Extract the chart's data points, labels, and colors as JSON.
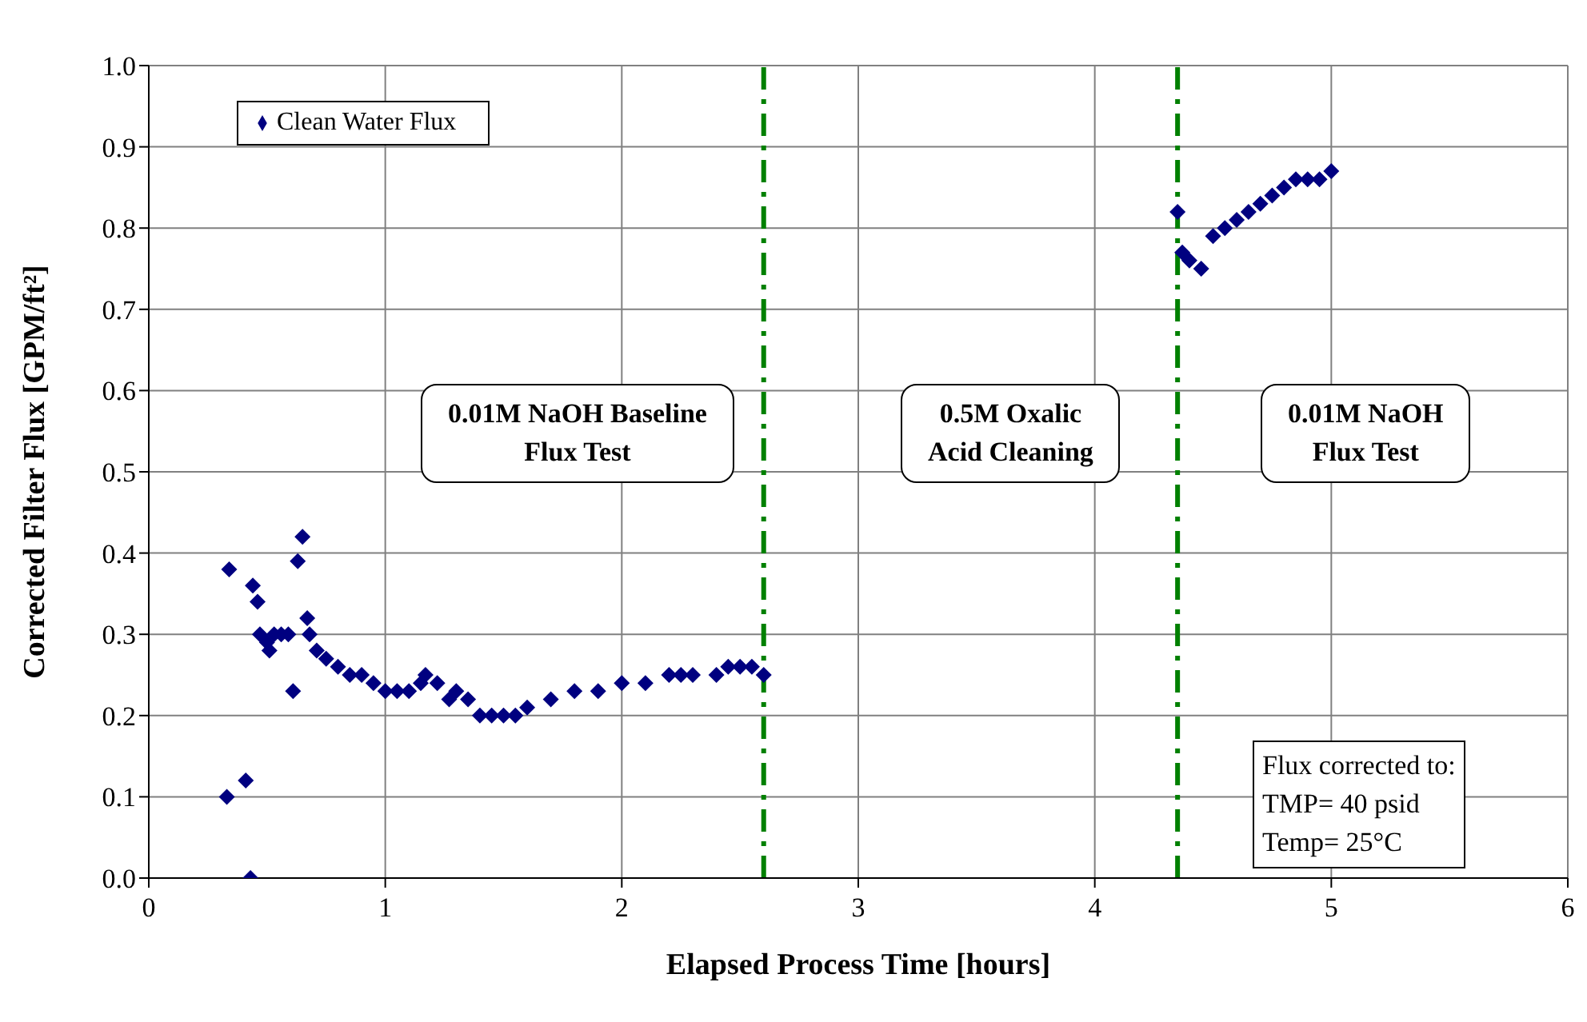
{
  "chart_data": {
    "type": "scatter",
    "xlabel": "Elapsed Process Time [hours]",
    "ylabel": "Corrected Filter Flux [GPM/ft²]",
    "xlim": [
      0,
      6
    ],
    "xticks": [
      0,
      1,
      2,
      3,
      4,
      5,
      6
    ],
    "ylim": [
      0,
      1
    ],
    "yticks": [
      {
        "value": 0,
        "label": "0.0"
      },
      {
        "value": 0.1,
        "label": "0.1"
      },
      {
        "value": 0.2,
        "label": "0.2"
      },
      {
        "value": 0.3,
        "label": "0.3"
      },
      {
        "value": 0.4,
        "label": "0.4"
      },
      {
        "value": 0.5,
        "label": "0.5"
      },
      {
        "value": 0.6,
        "label": "0.6"
      },
      {
        "value": 0.7,
        "label": "0.7"
      },
      {
        "value": 0.8,
        "label": "0.8"
      },
      {
        "value": 0.9,
        "label": "0.9"
      },
      {
        "value": 1,
        "label": "1.0"
      }
    ],
    "grid": true,
    "legend": "top left",
    "marker": "diamond",
    "series": [
      {
        "name": "Clean Water Flux",
        "color": "#000080",
        "x": [
          0.33,
          0.34,
          0.41,
          0.43,
          0.44,
          0.46,
          0.47,
          0.5,
          0.51,
          0.53,
          0.56,
          0.59,
          0.61,
          0.63,
          0.65,
          0.67,
          0.68,
          0.71,
          0.75,
          0.8,
          0.85,
          0.9,
          0.95,
          1.0,
          1.05,
          1.1,
          1.15,
          1.17,
          1.22,
          1.27,
          1.3,
          1.35,
          1.4,
          1.45,
          1.5,
          1.55,
          1.6,
          1.7,
          1.8,
          1.9,
          2.0,
          2.1,
          2.2,
          2.25,
          2.3,
          2.4,
          2.45,
          2.5,
          2.55,
          2.6,
          4.35,
          4.37,
          4.4,
          4.45,
          4.5,
          4.55,
          4.6,
          4.65,
          4.7,
          4.75,
          4.8,
          4.85,
          4.9,
          4.95,
          5.0
        ],
        "values": [
          0.1,
          0.38,
          0.12,
          0.0,
          0.36,
          0.34,
          0.3,
          0.29,
          0.28,
          0.3,
          0.3,
          0.3,
          0.23,
          0.39,
          0.42,
          0.32,
          0.3,
          0.28,
          0.27,
          0.26,
          0.25,
          0.25,
          0.24,
          0.23,
          0.23,
          0.23,
          0.24,
          0.25,
          0.24,
          0.22,
          0.23,
          0.22,
          0.2,
          0.2,
          0.2,
          0.2,
          0.21,
          0.22,
          0.23,
          0.23,
          0.24,
          0.24,
          0.25,
          0.25,
          0.25,
          0.25,
          0.26,
          0.26,
          0.26,
          0.25,
          0.82,
          0.77,
          0.76,
          0.75,
          0.79,
          0.8,
          0.81,
          0.82,
          0.83,
          0.84,
          0.85,
          0.86,
          0.86,
          0.86,
          0.87
        ]
      }
    ],
    "ref_lines": [
      {
        "axis": "x",
        "value": 2.6,
        "color": "#008000",
        "line_style": "dashdot"
      },
      {
        "axis": "x",
        "value": 4.35,
        "color": "#008000",
        "line_style": "dashdot"
      }
    ],
    "annotations": [
      "0.01M NaOH Baseline\nFlux Test",
      "0.5M Oxalic\nAcid Cleaning",
      "0.01M NaOH\nFlux Test",
      "Flux corrected to:\nTMP= 40 psid\nTemp= 25°C"
    ]
  }
}
